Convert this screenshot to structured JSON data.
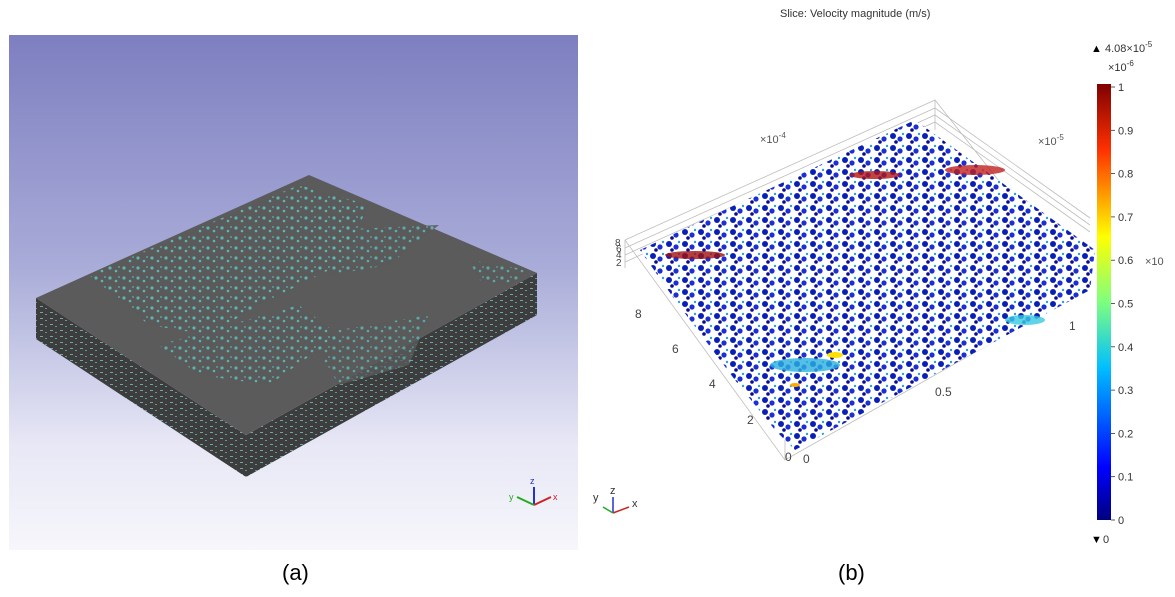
{
  "panel_a": {
    "caption": "(a)",
    "triad": {
      "x": "x",
      "y": "y",
      "z": "z"
    },
    "colors": {
      "background_top": "#7d7fc0",
      "slab_top": "#5b5b5b",
      "pore": "#5fb8b8"
    }
  },
  "panel_b": {
    "caption": "(b)",
    "title": "Slice: Velocity magnitude (m/s)",
    "multiplier_x": "×10",
    "multiplier_x_exp": "-4",
    "multiplier_y": "×10",
    "multiplier_y_exp": "-5",
    "multiplier_z": "×10",
    "z_ticks": [
      "8",
      "6",
      "4",
      "2"
    ],
    "y_ticks": [
      "8",
      "6",
      "4",
      "2",
      "0"
    ],
    "x_ticks": [
      "0",
      "0.5",
      "1"
    ],
    "triad": {
      "x": "x",
      "y": "y",
      "z": "z"
    },
    "colorbar": {
      "max_label_base": "4.08×10",
      "max_label_exp": "-5",
      "scale_base": "×10",
      "scale_exp": "-6",
      "min_label": "0",
      "max_marker": "▲",
      "min_marker": "▼",
      "ticks": [
        "1",
        "0.9",
        "0.8",
        "0.7",
        "0.6",
        "0.5",
        "0.4",
        "0.3",
        "0.2",
        "0.1",
        "0"
      ]
    }
  }
}
